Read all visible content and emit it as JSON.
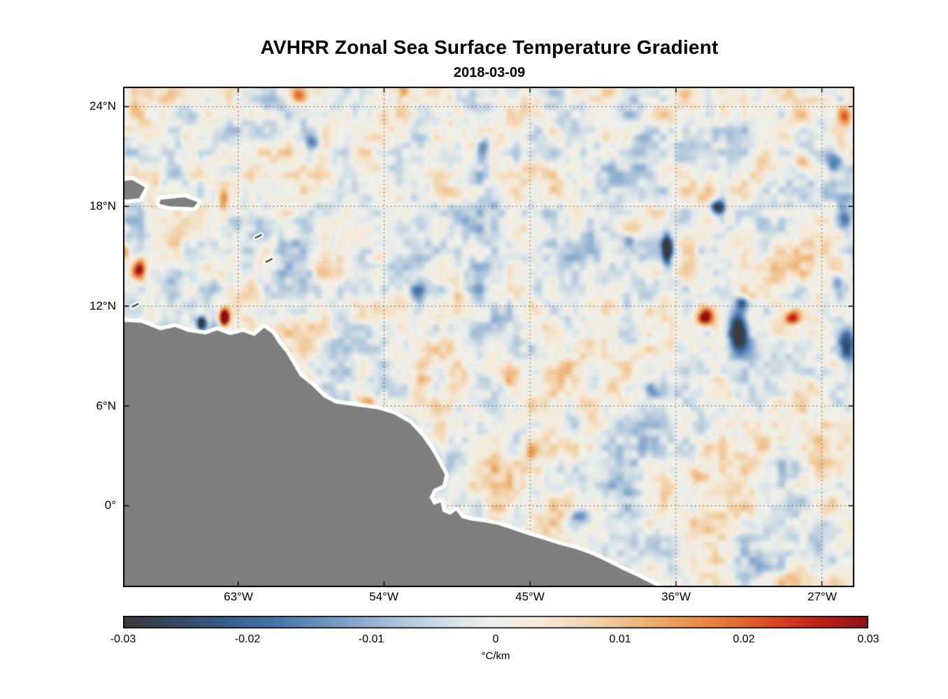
{
  "title": "AVHRR Zonal Sea Surface Temperature Gradient",
  "subtitle": "2018-03-09",
  "chart_data": {
    "type": "heatmap",
    "title": "AVHRR Zonal Sea Surface Temperature Gradient",
    "subtitle": "2018-03-09",
    "units": "°C/km",
    "lon_range": [
      -70.1,
      -25.0
    ],
    "lat_range": [
      25.2,
      -4.9
    ],
    "x_ticks": [
      {
        "lon": -63,
        "label": "63°W"
      },
      {
        "lon": -54,
        "label": "54°W"
      },
      {
        "lon": -45,
        "label": "45°W"
      },
      {
        "lon": -36,
        "label": "36°W"
      },
      {
        "lon": -27,
        "label": "27°W"
      }
    ],
    "y_ticks": [
      {
        "lat": 24,
        "label": "24°N"
      },
      {
        "lat": 18,
        "label": "18°N"
      },
      {
        "lat": 12,
        "label": "12°N"
      },
      {
        "lat": 6,
        "label": "6°N"
      },
      {
        "lat": 0,
        "label": "0°"
      }
    ],
    "grid": {
      "style": "dotted",
      "color": "#3a3a3a"
    },
    "frame_color": "#000000",
    "land_color": "#7f7f7f",
    "coast_buffer_color": "#ffffff",
    "colorbar": {
      "min": -0.03,
      "max": 0.03,
      "label": "°C/km",
      "ticks": [
        {
          "value": -0.03,
          "label": "-0.03"
        },
        {
          "value": -0.02,
          "label": "-0.02"
        },
        {
          "value": -0.01,
          "label": "-0.01"
        },
        {
          "value": 0,
          "label": "0"
        },
        {
          "value": 0.01,
          "label": "0.01"
        },
        {
          "value": 0.02,
          "label": "0.02"
        },
        {
          "value": 0.03,
          "label": "0.03"
        }
      ]
    },
    "colormap": [
      {
        "t": 0.0,
        "color": "#3b3b3d"
      },
      {
        "t": 0.06,
        "color": "#37455a"
      },
      {
        "t": 0.13,
        "color": "#335b89"
      },
      {
        "t": 0.21,
        "color": "#4678ad"
      },
      {
        "t": 0.3,
        "color": "#7fa1c9"
      },
      {
        "t": 0.38,
        "color": "#b4c9dd"
      },
      {
        "t": 0.45,
        "color": "#dce5e8"
      },
      {
        "t": 0.5,
        "color": "#eff0ea"
      },
      {
        "t": 0.56,
        "color": "#f4ead9"
      },
      {
        "t": 0.64,
        "color": "#f2cfa4"
      },
      {
        "t": 0.72,
        "color": "#eca865"
      },
      {
        "t": 0.8,
        "color": "#e57d39"
      },
      {
        "t": 0.87,
        "color": "#d94b24"
      },
      {
        "t": 0.93,
        "color": "#c02318"
      },
      {
        "t": 1.0,
        "color": "#8c1214"
      }
    ],
    "noise": {
      "octaves": [
        {
          "scale": 0.85,
          "amp": 0.0065,
          "ox": 0,
          "oy": 0
        },
        {
          "scale": 2.2,
          "amp": 0.0045,
          "ox": 31.7,
          "oy": 17.3
        },
        {
          "scale": 0.42,
          "amp": 0.005,
          "ox": 7.1,
          "oy": 3.9
        }
      ]
    },
    "features": [
      {
        "lon": -63.85,
        "lat": 11.35,
        "sx": 0.28,
        "sy": 0.5,
        "amp": 0.05
      },
      {
        "lon": -65.25,
        "lat": 11.0,
        "sx": 0.27,
        "sy": 0.38,
        "amp": -0.038
      },
      {
        "lon": -69.1,
        "lat": 14.2,
        "sx": 0.4,
        "sy": 0.55,
        "amp": 0.028
      },
      {
        "lon": -70.0,
        "lat": 15.3,
        "sx": 0.35,
        "sy": 0.4,
        "amp": 0.02
      },
      {
        "lon": -63.9,
        "lat": 18.4,
        "sx": 0.35,
        "sy": 0.95,
        "amp": 0.018
      },
      {
        "lon": -59.2,
        "lat": 24.7,
        "sx": 0.5,
        "sy": 0.5,
        "amp": 0.016
      },
      {
        "lon": -52.8,
        "lat": 24.9,
        "sx": 0.4,
        "sy": 0.4,
        "amp": 0.014
      },
      {
        "lon": -58.4,
        "lat": 21.9,
        "sx": 0.5,
        "sy": 0.5,
        "amp": -0.016
      },
      {
        "lon": -47.8,
        "lat": 21.5,
        "sx": 0.4,
        "sy": 0.7,
        "amp": -0.014
      },
      {
        "lon": -51.9,
        "lat": 12.7,
        "sx": 0.5,
        "sy": 0.5,
        "amp": -0.013
      },
      {
        "lon": -55.1,
        "lat": 6.3,
        "sx": 0.7,
        "sy": 0.5,
        "amp": 0.016
      },
      {
        "lon": -46.3,
        "lat": 7.5,
        "sx": 0.4,
        "sy": 0.4,
        "amp": 0.015
      },
      {
        "lon": -44.9,
        "lat": 3.4,
        "sx": 0.5,
        "sy": 0.5,
        "amp": 0.012
      },
      {
        "lon": -41.8,
        "lat": -0.6,
        "sx": 0.7,
        "sy": 0.6,
        "amp": -0.013
      },
      {
        "lon": -36.5,
        "lat": 15.4,
        "sx": 0.3,
        "sy": 0.85,
        "amp": -0.04
      },
      {
        "lon": -33.3,
        "lat": 17.9,
        "sx": 0.45,
        "sy": 0.45,
        "amp": -0.034
      },
      {
        "lon": -32.1,
        "lat": 10.5,
        "sx": 0.55,
        "sy": 1.1,
        "amp": -0.038
      },
      {
        "lon": -31.9,
        "lat": 12.2,
        "sx": 0.45,
        "sy": 0.4,
        "amp": -0.024
      },
      {
        "lon": -34.1,
        "lat": 11.3,
        "sx": 0.5,
        "sy": 0.55,
        "amp": 0.034
      },
      {
        "lon": -28.7,
        "lat": 11.3,
        "sx": 0.45,
        "sy": 0.45,
        "amp": 0.024
      },
      {
        "lon": -38.8,
        "lat": 15.9,
        "sx": 0.45,
        "sy": 0.4,
        "amp": -0.017
      },
      {
        "lon": -25.6,
        "lat": 17.3,
        "sx": 0.55,
        "sy": 0.8,
        "amp": -0.026
      },
      {
        "lon": -25.4,
        "lat": 9.6,
        "sx": 0.5,
        "sy": 0.9,
        "amp": -0.026
      },
      {
        "lon": -26.2,
        "lat": 20.8,
        "sx": 0.5,
        "sy": 0.6,
        "amp": -0.018
      },
      {
        "lon": -26.0,
        "lat": 13.5,
        "sx": 0.4,
        "sy": 0.5,
        "amp": -0.015
      },
      {
        "lon": -28.1,
        "lat": 20.6,
        "sx": 0.45,
        "sy": 0.5,
        "amp": 0.018
      },
      {
        "lon": -25.5,
        "lat": 23.4,
        "sx": 0.4,
        "sy": 0.5,
        "amp": 0.016
      },
      {
        "lon": -34.6,
        "lat": 1.8,
        "sx": 0.6,
        "sy": 0.5,
        "amp": 0.014
      },
      {
        "lon": -37.4,
        "lat": 7.0,
        "sx": 0.5,
        "sy": 0.5,
        "amp": -0.012
      }
    ],
    "land_polygons": {
      "mainland": [
        [
          -70.8,
          11.1
        ],
        [
          -69.0,
          11.0
        ],
        [
          -68.3,
          10.75
        ],
        [
          -67.8,
          10.55
        ],
        [
          -66.9,
          10.75
        ],
        [
          -66.1,
          10.45
        ],
        [
          -65.0,
          10.3
        ],
        [
          -64.3,
          10.55
        ],
        [
          -63.5,
          10.25
        ],
        [
          -62.7,
          10.45
        ],
        [
          -62.0,
          10.2
        ],
        [
          -61.4,
          10.7
        ],
        [
          -60.9,
          10.35
        ],
        [
          -60.55,
          9.8
        ],
        [
          -60.05,
          9.2
        ],
        [
          -59.65,
          8.55
        ],
        [
          -59.2,
          7.8
        ],
        [
          -58.55,
          7.3
        ],
        [
          -57.75,
          6.55
        ],
        [
          -57.0,
          6.15
        ],
        [
          -55.9,
          6.0
        ],
        [
          -54.4,
          5.8
        ],
        [
          -53.4,
          5.5
        ],
        [
          -52.4,
          4.95
        ],
        [
          -51.65,
          4.15
        ],
        [
          -51.05,
          3.3
        ],
        [
          -50.65,
          2.6
        ],
        [
          -50.25,
          1.85
        ],
        [
          -50.4,
          1.25
        ],
        [
          -50.95,
          1.0
        ],
        [
          -51.2,
          0.5
        ],
        [
          -50.95,
          0.05
        ],
        [
          -50.5,
          0.2
        ],
        [
          -50.4,
          -0.35
        ],
        [
          -49.95,
          -0.55
        ],
        [
          -49.55,
          -0.3
        ],
        [
          -49.2,
          -0.75
        ],
        [
          -48.6,
          -0.9
        ],
        [
          -47.8,
          -1.0
        ],
        [
          -47.0,
          -1.15
        ],
        [
          -46.2,
          -1.4
        ],
        [
          -45.3,
          -1.7
        ],
        [
          -44.3,
          -2.0
        ],
        [
          -43.2,
          -2.35
        ],
        [
          -42.2,
          -2.6
        ],
        [
          -41.2,
          -2.95
        ],
        [
          -40.3,
          -3.35
        ],
        [
          -39.3,
          -3.85
        ],
        [
          -38.3,
          -4.3
        ],
        [
          -37.3,
          -4.8
        ],
        [
          -36.7,
          -5.2
        ],
        [
          -36.7,
          -5.9
        ],
        [
          -70.8,
          -5.9
        ]
      ],
      "hispaniola": [
        [
          -70.5,
          19.45
        ],
        [
          -69.55,
          19.6
        ],
        [
          -68.75,
          19.15
        ],
        [
          -69.1,
          18.5
        ],
        [
          -69.9,
          18.4
        ],
        [
          -70.5,
          18.75
        ]
      ],
      "puerto_rico": [
        [
          -67.8,
          18.4
        ],
        [
          -66.3,
          18.55
        ],
        [
          -65.5,
          18.25
        ],
        [
          -65.75,
          17.95
        ],
        [
          -67.2,
          18.0
        ],
        [
          -67.85,
          18.15
        ]
      ]
    },
    "island_specks": [
      [
        -61.75,
        16.2
      ],
      [
        -61.1,
        14.75
      ],
      [
        -69.35,
        12.05
      ]
    ]
  }
}
